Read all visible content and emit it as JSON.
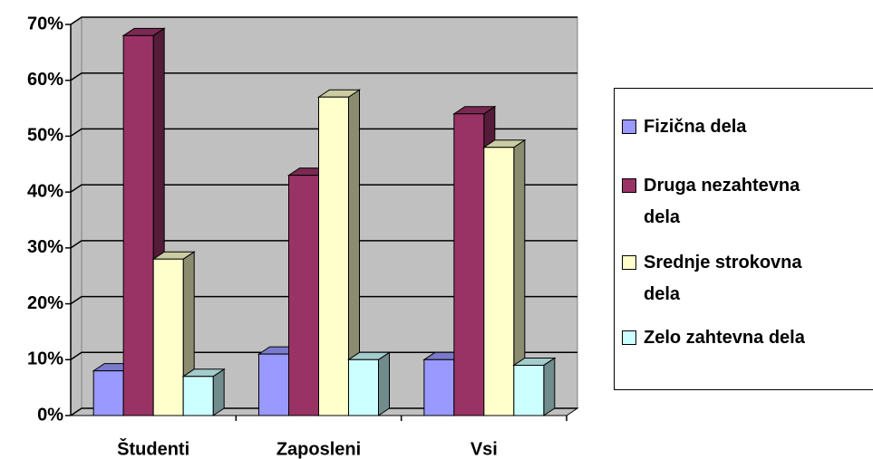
{
  "chart_data": {
    "type": "bar3d",
    "categories": [
      "Študenti",
      "Zaposleni",
      "Vsi"
    ],
    "series": [
      {
        "name": "Fizična dela",
        "color": "#9999ff",
        "values": [
          8,
          11,
          10
        ]
      },
      {
        "name": "Druga nezahtevna dela",
        "color": "#993366",
        "values": [
          68,
          43,
          54
        ]
      },
      {
        "name": "Srednje strokovna dela",
        "color": "#ffffcc",
        "values": [
          28,
          57,
          48
        ]
      },
      {
        "name": "Zelo zahtevna dela",
        "color": "#ccffff",
        "values": [
          7,
          10,
          9
        ]
      }
    ],
    "ylim": [
      0,
      70
    ],
    "yticks": [
      {
        "value": 0,
        "label": "0%"
      },
      {
        "value": 10,
        "label": "10%"
      },
      {
        "value": 20,
        "label": "20%"
      },
      {
        "value": 30,
        "label": "30%"
      },
      {
        "value": 40,
        "label": "40%"
      },
      {
        "value": 50,
        "label": "50%"
      },
      {
        "value": 60,
        "label": "60%"
      },
      {
        "value": 70,
        "label": "70%"
      }
    ],
    "grid": true,
    "legend": "right",
    "wall_color": "#c0c0c0"
  }
}
